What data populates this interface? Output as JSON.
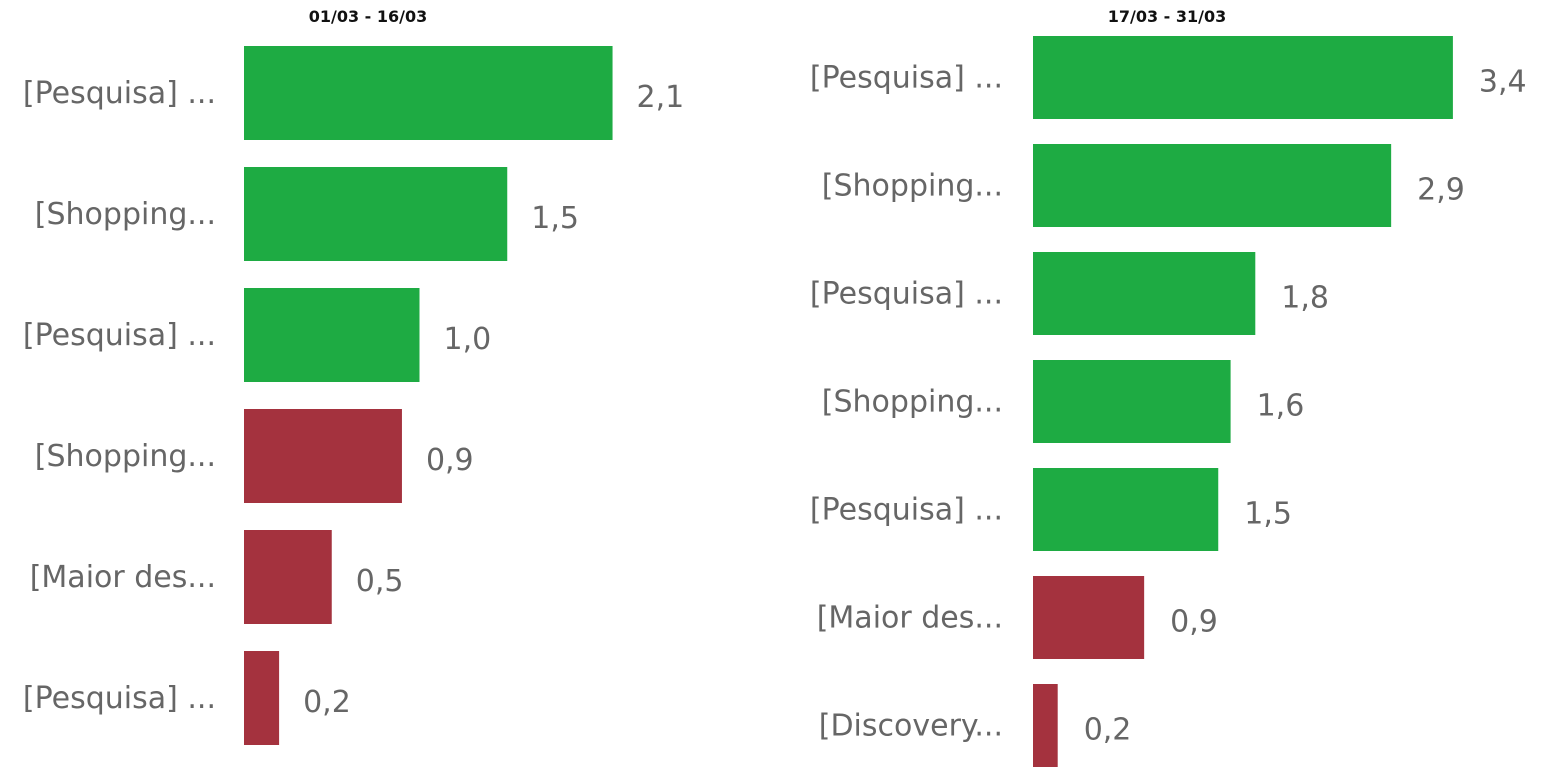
{
  "colors": {
    "positive": "#1eab43",
    "negative": "#a4323e"
  },
  "chart_data": [
    {
      "type": "bar",
      "orientation": "horizontal",
      "title": "01/03 - 16/03",
      "categories": [
        "[Pesquisa] ...",
        "[Shopping...",
        "[Pesquisa] ...",
        "[Shopping...",
        "[Maior des...",
        "[Pesquisa] ..."
      ],
      "values": [
        2.1,
        1.5,
        1.0,
        0.9,
        0.5,
        0.2
      ],
      "value_labels": [
        "2,1",
        "1,5",
        "1,0",
        "0,9",
        "0,5",
        "0,2"
      ],
      "bar_colors": [
        "#1eab43",
        "#1eab43",
        "#1eab43",
        "#a4323e",
        "#a4323e",
        "#a4323e"
      ],
      "grid": false,
      "legend": "none"
    },
    {
      "type": "bar",
      "orientation": "horizontal",
      "title": "17/03 - 31/03",
      "categories": [
        "[Pesquisa] ...",
        "[Shopping...",
        "[Pesquisa] ...",
        "[Shopping...",
        "[Pesquisa] ...",
        "[Maior des...",
        "[Discovery..."
      ],
      "values": [
        3.4,
        2.9,
        1.8,
        1.6,
        1.5,
        0.9,
        0.2
      ],
      "value_labels": [
        "3,4",
        "2,9",
        "1,8",
        "1,6",
        "1,5",
        "0,9",
        "0,2"
      ],
      "bar_colors": [
        "#1eab43",
        "#1eab43",
        "#1eab43",
        "#1eab43",
        "#1eab43",
        "#a4323e",
        "#a4323e"
      ],
      "grid": false,
      "legend": "none"
    }
  ]
}
